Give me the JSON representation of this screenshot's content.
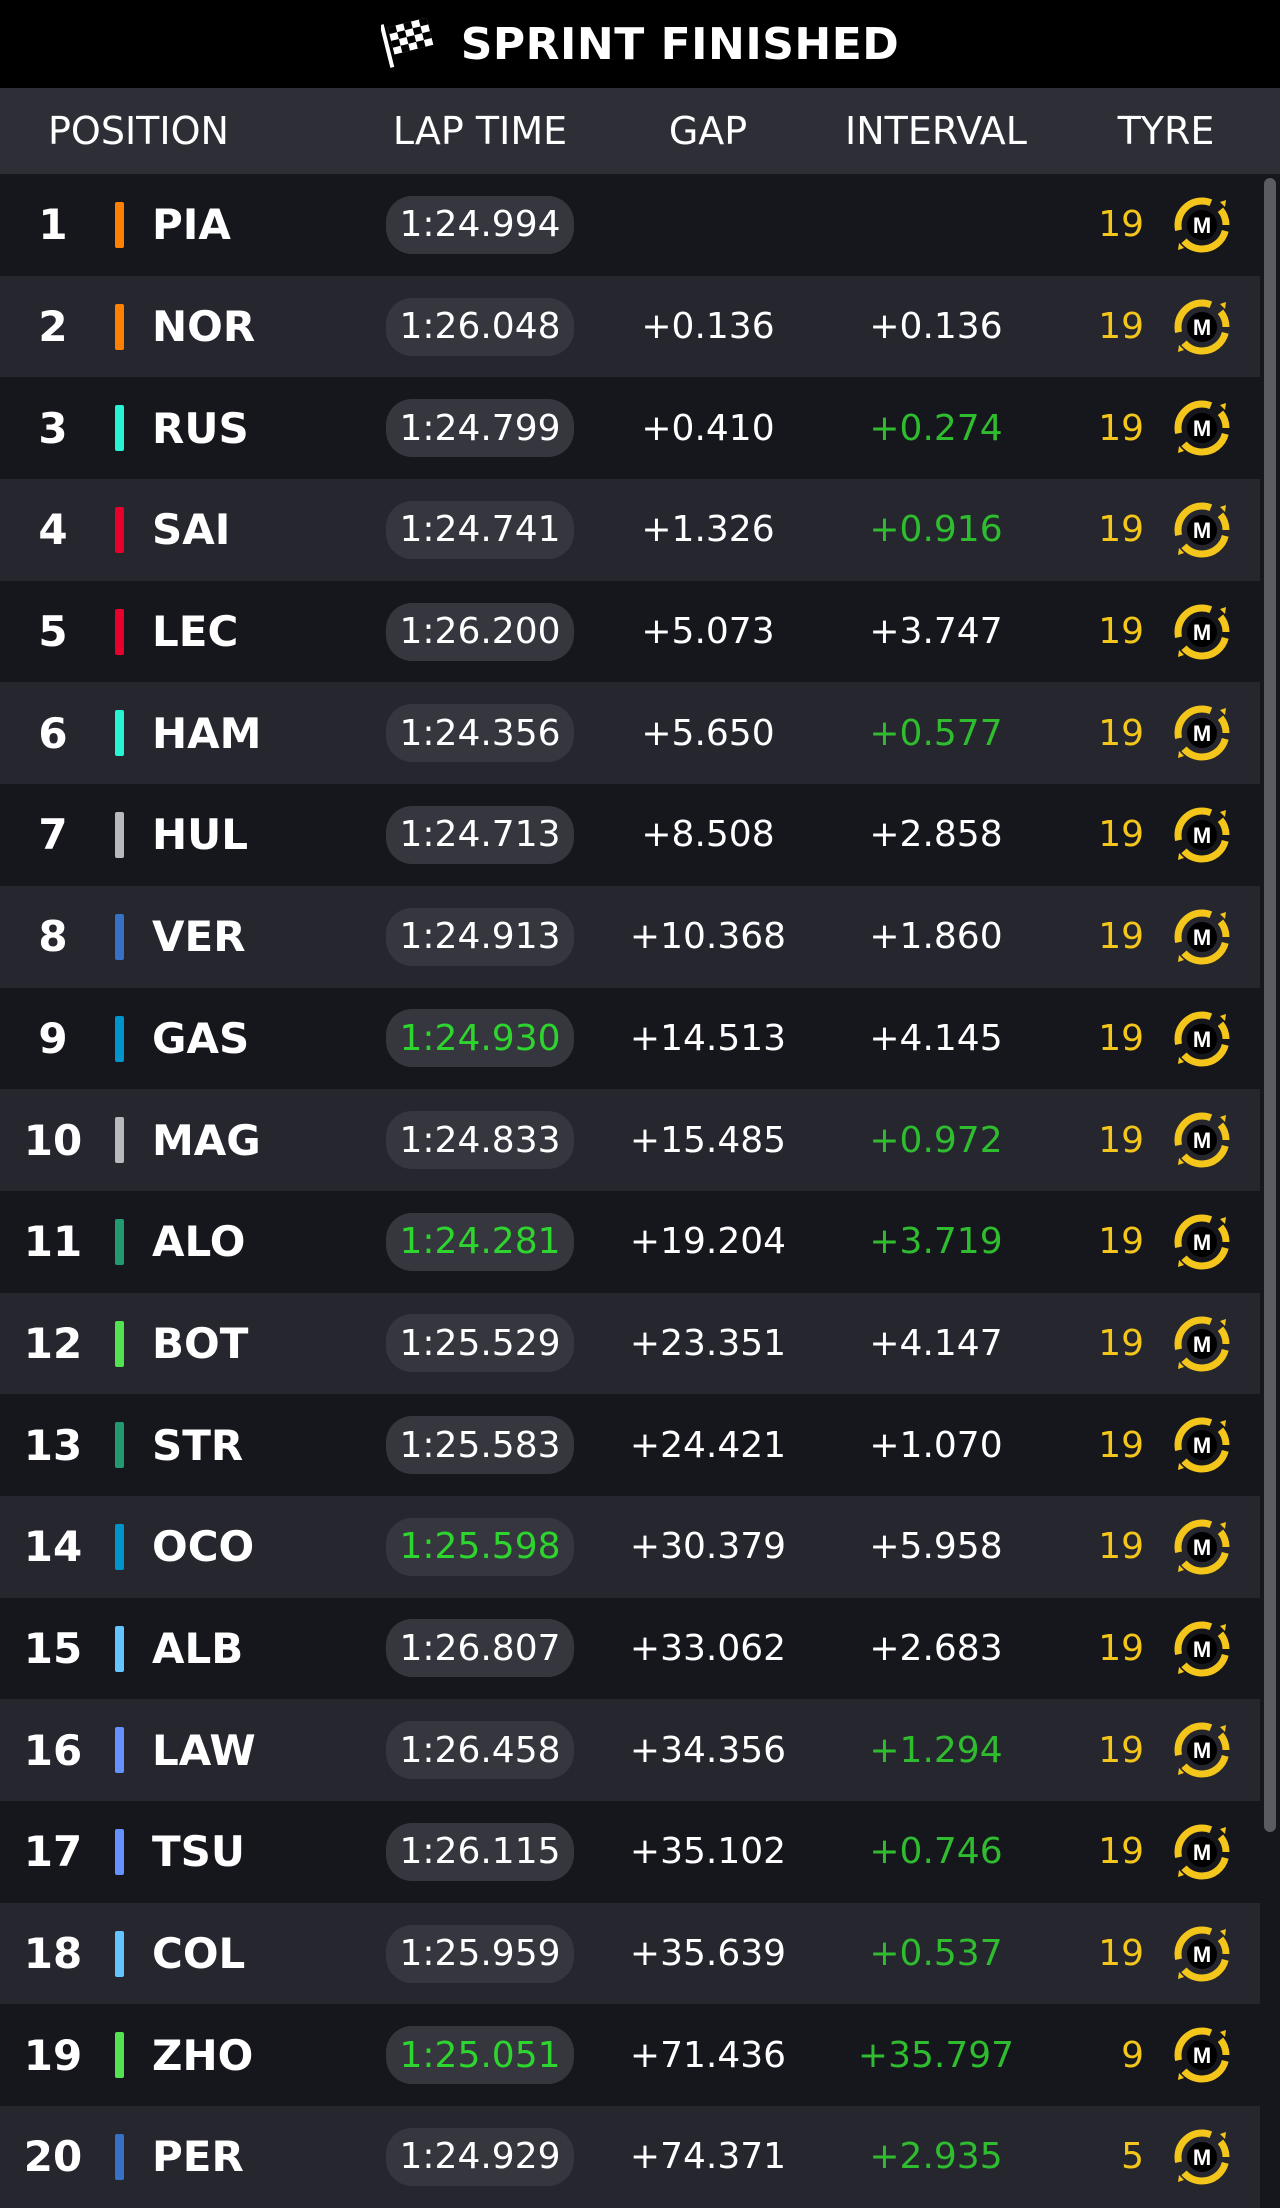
{
  "status": {
    "title": "SPRINT FINISHED",
    "icon": "checkered-flag-icon"
  },
  "columns": {
    "position": "POSITION",
    "lap_time": "LAP TIME",
    "gap": "GAP",
    "interval": "INTERVAL",
    "tyre": "TYRE"
  },
  "colors": {
    "fastest_lap": "#2ed52e",
    "interval_gain": "#2fbd2f",
    "tyre_medium": "#f4c51a",
    "row_dark": "#16161d",
    "row_light": "#25262e"
  },
  "tyre_compound": "M",
  "rows": [
    {
      "pos": "1",
      "driver": "PIA",
      "team_color": "#ff8000",
      "lap_time": "1:24.994",
      "best": false,
      "gap": "",
      "interval": "",
      "interval_green": false,
      "laps": "19"
    },
    {
      "pos": "2",
      "driver": "NOR",
      "team_color": "#ff8000",
      "lap_time": "1:26.048",
      "best": false,
      "gap": "+0.136",
      "interval": "+0.136",
      "interval_green": false,
      "laps": "19"
    },
    {
      "pos": "3",
      "driver": "RUS",
      "team_color": "#27f4d2",
      "lap_time": "1:24.799",
      "best": false,
      "gap": "+0.410",
      "interval": "+0.274",
      "interval_green": true,
      "laps": "19"
    },
    {
      "pos": "4",
      "driver": "SAI",
      "team_color": "#e8002d",
      "lap_time": "1:24.741",
      "best": false,
      "gap": "+1.326",
      "interval": "+0.916",
      "interval_green": true,
      "laps": "19"
    },
    {
      "pos": "5",
      "driver": "LEC",
      "team_color": "#e8002d",
      "lap_time": "1:26.200",
      "best": false,
      "gap": "+5.073",
      "interval": "+3.747",
      "interval_green": false,
      "laps": "19"
    },
    {
      "pos": "6",
      "driver": "HAM",
      "team_color": "#27f4d2",
      "lap_time": "1:24.356",
      "best": false,
      "gap": "+5.650",
      "interval": "+0.577",
      "interval_green": true,
      "laps": "19"
    },
    {
      "pos": "7",
      "driver": "HUL",
      "team_color": "#b6babd",
      "lap_time": "1:24.713",
      "best": false,
      "gap": "+8.508",
      "interval": "+2.858",
      "interval_green": false,
      "laps": "19"
    },
    {
      "pos": "8",
      "driver": "VER",
      "team_color": "#3671c6",
      "lap_time": "1:24.913",
      "best": false,
      "gap": "+10.368",
      "interval": "+1.860",
      "interval_green": false,
      "laps": "19"
    },
    {
      "pos": "9",
      "driver": "GAS",
      "team_color": "#0093cc",
      "lap_time": "1:24.930",
      "best": true,
      "gap": "+14.513",
      "interval": "+4.145",
      "interval_green": false,
      "laps": "19"
    },
    {
      "pos": "10",
      "driver": "MAG",
      "team_color": "#b6babd",
      "lap_time": "1:24.833",
      "best": false,
      "gap": "+15.485",
      "interval": "+0.972",
      "interval_green": true,
      "laps": "19"
    },
    {
      "pos": "11",
      "driver": "ALO",
      "team_color": "#229971",
      "lap_time": "1:24.281",
      "best": true,
      "gap": "+19.204",
      "interval": "+3.719",
      "interval_green": true,
      "laps": "19"
    },
    {
      "pos": "12",
      "driver": "BOT",
      "team_color": "#52e252",
      "lap_time": "1:25.529",
      "best": false,
      "gap": "+23.351",
      "interval": "+4.147",
      "interval_green": false,
      "laps": "19"
    },
    {
      "pos": "13",
      "driver": "STR",
      "team_color": "#229971",
      "lap_time": "1:25.583",
      "best": false,
      "gap": "+24.421",
      "interval": "+1.070",
      "interval_green": false,
      "laps": "19"
    },
    {
      "pos": "14",
      "driver": "OCO",
      "team_color": "#0093cc",
      "lap_time": "1:25.598",
      "best": true,
      "gap": "+30.379",
      "interval": "+5.958",
      "interval_green": false,
      "laps": "19"
    },
    {
      "pos": "15",
      "driver": "ALB",
      "team_color": "#64c4ff",
      "lap_time": "1:26.807",
      "best": false,
      "gap": "+33.062",
      "interval": "+2.683",
      "interval_green": false,
      "laps": "19"
    },
    {
      "pos": "16",
      "driver": "LAW",
      "team_color": "#6692ff",
      "lap_time": "1:26.458",
      "best": false,
      "gap": "+34.356",
      "interval": "+1.294",
      "interval_green": true,
      "laps": "19"
    },
    {
      "pos": "17",
      "driver": "TSU",
      "team_color": "#6692ff",
      "lap_time": "1:26.115",
      "best": false,
      "gap": "+35.102",
      "interval": "+0.746",
      "interval_green": true,
      "laps": "19"
    },
    {
      "pos": "18",
      "driver": "COL",
      "team_color": "#64c4ff",
      "lap_time": "1:25.959",
      "best": false,
      "gap": "+35.639",
      "interval": "+0.537",
      "interval_green": true,
      "laps": "19"
    },
    {
      "pos": "19",
      "driver": "ZHO",
      "team_color": "#52e252",
      "lap_time": "1:25.051",
      "best": true,
      "gap": "+71.436",
      "interval": "+35.797",
      "interval_green": true,
      "laps": "9"
    },
    {
      "pos": "20",
      "driver": "PER",
      "team_color": "#3671c6",
      "lap_time": "1:24.929",
      "best": false,
      "gap": "+74.371",
      "interval": "+2.935",
      "interval_green": true,
      "laps": "5"
    }
  ]
}
